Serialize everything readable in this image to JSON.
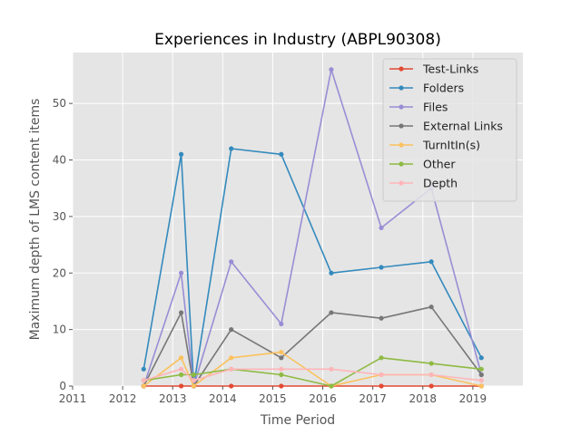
{
  "chart_data": {
    "type": "line",
    "title": "Experiences in Industry (ABPL90308)",
    "xlabel": "Time Period",
    "ylabel": "Maximum depth of LMS content items",
    "xlim": [
      2011,
      2020
    ],
    "ylim": [
      0,
      59
    ],
    "xticks": [
      "2011",
      "2012",
      "2013",
      "2014",
      "2015",
      "2016",
      "2017",
      "2018",
      "2019"
    ],
    "yticks": [
      "0",
      "10",
      "20",
      "30",
      "40",
      "50"
    ],
    "grid": true,
    "legend_position": "top-right",
    "x": [
      2012.42,
      2013.17,
      2013.42,
      2014.17,
      2015.17,
      2016.17,
      2017.17,
      2018.17,
      2019.17
    ],
    "series": [
      {
        "name": "Test-Links",
        "color": "#e24a33",
        "values": [
          0,
          0,
          0,
          0,
          0,
          0,
          0,
          0,
          0
        ]
      },
      {
        "name": "Folders",
        "color": "#348abd",
        "values": [
          3,
          41,
          0,
          42,
          41,
          20,
          21,
          22,
          5
        ]
      },
      {
        "name": "Files",
        "color": "#988ed5",
        "values": [
          0,
          20,
          0,
          22,
          11,
          56,
          28,
          35,
          2
        ]
      },
      {
        "name": "External Links",
        "color": "#777777",
        "values": [
          0,
          13,
          0,
          10,
          5,
          13,
          12,
          14,
          2
        ]
      },
      {
        "name": "TurnItIn(s)",
        "color": "#fbc15e",
        "values": [
          0,
          5,
          0,
          5,
          6,
          0,
          2,
          2,
          0
        ]
      },
      {
        "name": "Other",
        "color": "#8eba42",
        "values": [
          1,
          2,
          2,
          3,
          2,
          0,
          5,
          4,
          3
        ]
      },
      {
        "name": "Depth",
        "color": "#ffb5b8",
        "values": [
          1,
          3,
          1,
          3,
          3,
          3,
          2,
          2,
          1
        ]
      }
    ]
  }
}
